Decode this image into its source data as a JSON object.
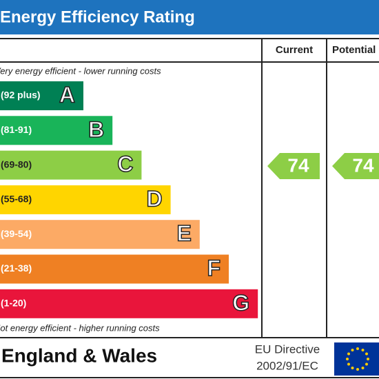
{
  "header": {
    "title": "Energy Efficiency Rating"
  },
  "columns": {
    "current": "Current",
    "potential": "Potential"
  },
  "top_note": "Very energy efficient - lower running costs",
  "bottom_note": "Not energy efficient - higher running costs",
  "bands": [
    {
      "range": "(92 plus)",
      "letter": "A",
      "color": "#008054"
    },
    {
      "range": "(81-91)",
      "letter": "B",
      "color": "#19b459"
    },
    {
      "range": "(69-80)",
      "letter": "C",
      "color": "#8dce46"
    },
    {
      "range": "(55-68)",
      "letter": "D",
      "color": "#ffd500"
    },
    {
      "range": "(39-54)",
      "letter": "E",
      "color": "#fcaa65"
    },
    {
      "range": "(21-38)",
      "letter": "F",
      "color": "#ef8023"
    },
    {
      "range": "(1-20)",
      "letter": "G",
      "color": "#e9153b"
    }
  ],
  "ratings": {
    "current": "74",
    "potential": "74"
  },
  "footer": {
    "region": "England & Wales",
    "directive_line1": "EU Directive",
    "directive_line2": "2002/91/EC"
  }
}
